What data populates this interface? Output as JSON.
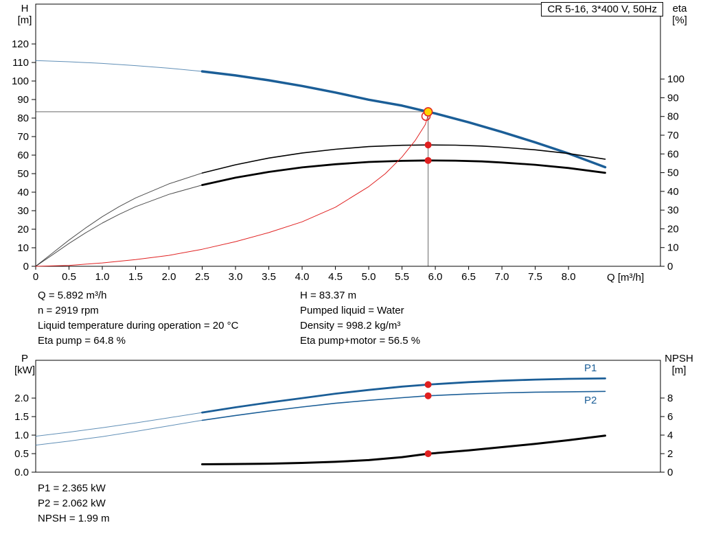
{
  "title_box": "CR 5-16, 3*400 V, 50Hz",
  "colors": {
    "pump_blue": "#1b5e97",
    "curve_black": "#000000",
    "system_red": "#e02020",
    "duty_yellow": "#ffd400",
    "crosshair_gray": "#666666"
  },
  "info_top": {
    "left": [
      "Q = 5.892 m³/h",
      "n = 2919 rpm",
      "Liquid temperature during operation = 20 °C",
      "Eta pump = 64.8 %"
    ],
    "right": [
      "H = 83.37 m",
      "Pumped liquid = Water",
      "Density = 998.2 kg/m³",
      "Eta pump+motor = 56.5 %"
    ]
  },
  "info_bottom": [
    "P1 = 2.365 kW",
    "P2 = 2.062 kW",
    "NPSH = 1.99 m"
  ],
  "chart_data": [
    {
      "type": "line",
      "id": "qh-eta-chart",
      "title": "CR 5-16, 3*400 V, 50Hz",
      "x_axis": {
        "label": "Q [m³/h]",
        "range": [
          0,
          9.38
        ],
        "ticks": [
          "0",
          "0.5",
          "1.0",
          "1.5",
          "2.0",
          "2.5",
          "3.0",
          "3.5",
          "4.0",
          "4.5",
          "5.0",
          "5.5",
          "6.0",
          "6.5",
          "7.0",
          "7.5",
          "8.0"
        ]
      },
      "y_left": {
        "name": "H",
        "unit": "[m]",
        "range": [
          0,
          141.5
        ],
        "ticks": [
          "0",
          "10",
          "20",
          "30",
          "40",
          "50",
          "60",
          "70",
          "80",
          "90",
          "100",
          "110",
          "120"
        ]
      },
      "y_right": {
        "name": "eta",
        "unit": "[%]",
        "range": [
          0,
          140
        ],
        "ticks": [
          "0",
          "10",
          "20",
          "30",
          "40",
          "50",
          "60",
          "70",
          "80",
          "90",
          "100"
        ]
      },
      "duty_point": {
        "q": 5.892,
        "h": 83.37
      },
      "series": [
        {
          "name": "pump-curve-H",
          "color": "#1b5e97",
          "width": 3.5,
          "axis": "left",
          "split_q": 2.5,
          "points": [
            [
              0,
              111
            ],
            [
              0.5,
              110.4
            ],
            [
              1,
              109.5
            ],
            [
              1.5,
              108.3
            ],
            [
              2,
              106.9
            ],
            [
              2.5,
              105.2
            ],
            [
              3,
              103.0
            ],
            [
              3.5,
              100.4
            ],
            [
              4,
              97.3
            ],
            [
              4.5,
              93.8
            ],
            [
              5,
              89.9
            ],
            [
              5.5,
              86.7
            ],
            [
              5.892,
              83.37
            ],
            [
              6,
              82.5
            ],
            [
              6.5,
              77.7
            ],
            [
              7,
              72.5
            ],
            [
              7.5,
              66.9
            ],
            [
              8,
              60.9
            ],
            [
              8.55,
              53.5
            ]
          ]
        },
        {
          "name": "eta-pump",
          "color": "#000000",
          "width": 1.6,
          "axis": "right",
          "split_q": 2.5,
          "points": [
            [
              0,
              0
            ],
            [
              0.25,
              7
            ],
            [
              0.5,
              14
            ],
            [
              0.75,
              20.5
            ],
            [
              1,
              26.5
            ],
            [
              1.25,
              31.8
            ],
            [
              1.5,
              36.5
            ],
            [
              2,
              44
            ],
            [
              2.5,
              49.8
            ],
            [
              3,
              54.2
            ],
            [
              3.5,
              57.8
            ],
            [
              4,
              60.5
            ],
            [
              4.5,
              62.5
            ],
            [
              5,
              63.9
            ],
            [
              5.5,
              64.6
            ],
            [
              5.892,
              64.8
            ],
            [
              6.3,
              64.7
            ],
            [
              6.7,
              64.2
            ],
            [
              7,
              63.6
            ],
            [
              7.5,
              62.2
            ],
            [
              8,
              60.2
            ],
            [
              8.55,
              57.2
            ]
          ]
        },
        {
          "name": "eta-pump-motor",
          "color": "#000000",
          "width": 2.8,
          "axis": "right",
          "split_q": 2.5,
          "points": [
            [
              0,
              0
            ],
            [
              0.25,
              6.1
            ],
            [
              0.5,
              12.2
            ],
            [
              0.75,
              17.9
            ],
            [
              1,
              23.1
            ],
            [
              1.25,
              27.7
            ],
            [
              1.5,
              31.8
            ],
            [
              2,
              38.4
            ],
            [
              2.5,
              43.4
            ],
            [
              3,
              47.3
            ],
            [
              3.5,
              50.4
            ],
            [
              4,
              52.8
            ],
            [
              4.5,
              54.5
            ],
            [
              5,
              55.7
            ],
            [
              5.5,
              56.3
            ],
            [
              5.892,
              56.5
            ],
            [
              6.3,
              56.4
            ],
            [
              6.7,
              56.0
            ],
            [
              7,
              55.4
            ],
            [
              7.5,
              54.2
            ],
            [
              8,
              52.5
            ],
            [
              8.55,
              49.9
            ]
          ]
        },
        {
          "name": "system-curve",
          "color": "#e02020",
          "width": 1,
          "axis": "left",
          "points": [
            [
              0,
              0
            ],
            [
              0.5,
              0.5
            ],
            [
              1,
              1.8
            ],
            [
              1.5,
              3.6
            ],
            [
              2,
              5.9
            ],
            [
              2.5,
              9.2
            ],
            [
              3,
              13.3
            ],
            [
              3.5,
              18.2
            ],
            [
              4,
              24
            ],
            [
              4.5,
              31.9
            ],
            [
              5,
              43
            ],
            [
              5.25,
              50
            ],
            [
              5.5,
              59
            ],
            [
              5.7,
              68
            ],
            [
              5.85,
              76.5
            ],
            [
              5.89,
              81.2
            ]
          ]
        }
      ],
      "markers": [
        {
          "q": 5.86,
          "v": 81.0,
          "axis": "left",
          "r": 6,
          "fill": "none",
          "stroke": "#e02020"
        },
        {
          "q": 5.892,
          "v": 83.37,
          "axis": "left",
          "r": 6,
          "fill": "#ffd400",
          "stroke": "#e02020"
        },
        {
          "q": 5.892,
          "v": 64.8,
          "axis": "right",
          "r": 5,
          "fill": "#e02020",
          "stroke": "none"
        },
        {
          "q": 5.892,
          "v": 56.5,
          "axis": "right",
          "r": 5,
          "fill": "#e02020",
          "stroke": "none"
        }
      ]
    },
    {
      "type": "line",
      "id": "power-npsh-chart",
      "x_axis": {
        "label": "",
        "range": [
          0,
          9.38
        ],
        "ticks": []
      },
      "y_left": {
        "name": "P",
        "unit": "[kW]",
        "range": [
          0,
          3.02
        ],
        "ticks": [
          "0.0",
          "0.5",
          "1.0",
          "1.5",
          "2.0"
        ]
      },
      "y_right": {
        "name": "NPSH",
        "unit": "[m]",
        "range": [
          0,
          12.07
        ],
        "ticks": [
          "0",
          "2",
          "4",
          "6",
          "8"
        ]
      },
      "series": [
        {
          "name": "P1",
          "color": "#1b5e97",
          "width": 2.8,
          "axis": "left",
          "split_q": 2.5,
          "points": [
            [
              0,
              0.97
            ],
            [
              0.5,
              1.08
            ],
            [
              1,
              1.2
            ],
            [
              1.5,
              1.33
            ],
            [
              2,
              1.47
            ],
            [
              2.5,
              1.61
            ],
            [
              3,
              1.75
            ],
            [
              3.5,
              1.88
            ],
            [
              4,
              2.0
            ],
            [
              4.5,
              2.12
            ],
            [
              5,
              2.22
            ],
            [
              5.5,
              2.31
            ],
            [
              5.892,
              2.365
            ],
            [
              6.5,
              2.43
            ],
            [
              7,
              2.47
            ],
            [
              7.5,
              2.5
            ],
            [
              8,
              2.52
            ],
            [
              8.55,
              2.53
            ]
          ]
        },
        {
          "name": "P2",
          "color": "#1b5e97",
          "width": 1.6,
          "axis": "left",
          "split_q": 2.5,
          "points": [
            [
              0,
              0.73
            ],
            [
              0.5,
              0.84
            ],
            [
              1,
              0.96
            ],
            [
              1.5,
              1.1
            ],
            [
              2,
              1.25
            ],
            [
              2.5,
              1.4
            ],
            [
              3,
              1.53
            ],
            [
              3.5,
              1.65
            ],
            [
              4,
              1.76
            ],
            [
              4.5,
              1.86
            ],
            [
              5,
              1.94
            ],
            [
              5.5,
              2.01
            ],
            [
              5.892,
              2.062
            ],
            [
              6.5,
              2.11
            ],
            [
              7,
              2.14
            ],
            [
              7.5,
              2.16
            ],
            [
              8,
              2.17
            ],
            [
              8.55,
              2.18
            ]
          ]
        },
        {
          "name": "NPSH",
          "color": "#000000",
          "width": 3,
          "axis": "right",
          "points": [
            [
              2.5,
              0.85
            ],
            [
              3,
              0.88
            ],
            [
              3.5,
              0.92
            ],
            [
              4,
              1.0
            ],
            [
              4.5,
              1.12
            ],
            [
              5,
              1.3
            ],
            [
              5.5,
              1.62
            ],
            [
              5.892,
              1.99
            ],
            [
              6.5,
              2.35
            ],
            [
              7,
              2.7
            ],
            [
              7.5,
              3.05
            ],
            [
              8,
              3.45
            ],
            [
              8.55,
              3.95
            ]
          ]
        }
      ],
      "markers": [
        {
          "q": 5.892,
          "v": 2.365,
          "axis": "left",
          "r": 5,
          "fill": "#e02020",
          "stroke": "none"
        },
        {
          "q": 5.892,
          "v": 2.062,
          "axis": "left",
          "r": 5,
          "fill": "#e02020",
          "stroke": "none"
        },
        {
          "q": 5.892,
          "v": 1.99,
          "axis": "right",
          "r": 5,
          "fill": "#e02020",
          "stroke": "none"
        }
      ],
      "labels": [
        {
          "text": "P1",
          "q": 8.33,
          "v": 2.72,
          "axis": "left",
          "color": "#1b5e97"
        },
        {
          "text": "P2",
          "q": 8.33,
          "v": 1.85,
          "axis": "left",
          "color": "#1b5e97"
        }
      ]
    }
  ]
}
